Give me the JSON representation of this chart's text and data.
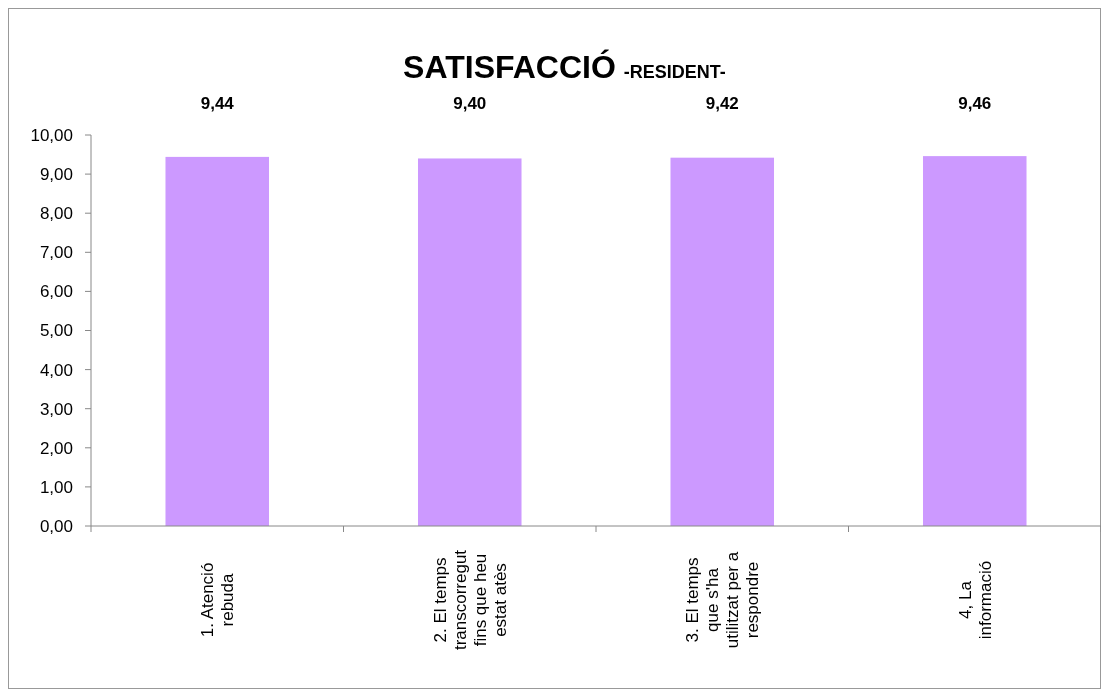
{
  "chart_data": {
    "type": "bar",
    "title": "SATISFACCIÓ",
    "subtitle": "-RESIDENT-",
    "categories": [
      "1. Atenció\nrebuda",
      "2. El temps\ntranscorregut\nfins que heu\nestat atès",
      "3. El temps\nque s'ha\nutilitzat per a\nrespondre",
      "4, La\ninformació"
    ],
    "values": [
      9.44,
      9.4,
      9.42,
      9.46
    ],
    "value_labels": [
      "9,44",
      "9,40",
      "9,42",
      "9,46"
    ],
    "color": "#cc99ff",
    "ylim": [
      0,
      10
    ],
    "yticks": [
      {
        "value": 0,
        "label": "0,00"
      },
      {
        "value": 1,
        "label": "1,00"
      },
      {
        "value": 2,
        "label": "2,00"
      },
      {
        "value": 3,
        "label": "3,00"
      },
      {
        "value": 4,
        "label": "4,00"
      },
      {
        "value": 5,
        "label": "5,00"
      },
      {
        "value": 6,
        "label": "6,00"
      },
      {
        "value": 7,
        "label": "7,00"
      },
      {
        "value": 8,
        "label": "8,00"
      },
      {
        "value": 9,
        "label": "9,00"
      },
      {
        "value": 10,
        "label": "10,00"
      }
    ],
    "grid": false
  }
}
